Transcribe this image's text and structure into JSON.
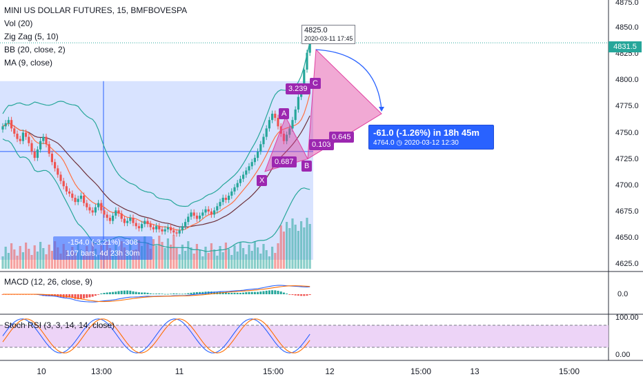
{
  "legend": {
    "symbol": "MINI US DOLLAR FUTURES, 15, BMFBOVESPA",
    "vol": "Vol (20)",
    "zigzag": "Zig Zag (5, 10)",
    "bb": "BB (20, close, 2)",
    "ma": "MA (9, close)"
  },
  "macd_label": "MACD (12, 26, close, 9)",
  "stoch_label": "Stoch RSI (3, 3, 14, 14, close)",
  "price_axis": {
    "ticks": [
      "4875.0",
      "4850.0",
      "4825.0",
      "4800.0",
      "4775.0",
      "4750.0",
      "4725.0",
      "4700.0",
      "4675.0",
      "4650.0",
      "4625.0"
    ],
    "last_price": "4831.5"
  },
  "macd_axis": [
    "0.0"
  ],
  "stoch_axis": [
    "100.00",
    "0.00"
  ],
  "time_axis": [
    "10",
    "13:00",
    "11",
    "15:00",
    "12",
    "15:00",
    "13",
    "15:00"
  ],
  "measure": {
    "line1": "-154.0 (-3.21%) -308",
    "line2": "107 bars, 4d 23h 30m"
  },
  "projection": {
    "line1": "-61.0 (-1.26%) in 18h 45m",
    "line2": "4764.0 ◷ 2020-03-12 12:30"
  },
  "high_flag": {
    "price": "4825.0",
    "time": "2020-03-11 17:45"
  },
  "pattern": {
    "labels": [
      "X",
      "A",
      "B",
      "C"
    ],
    "ratios": [
      "0.687",
      "0.103",
      "3.239",
      "0.645"
    ]
  },
  "colors": {
    "up": "#26a69a",
    "down": "#ef5350",
    "pattern": "#e040a0",
    "accent": "#2962ff",
    "stoch_band": "#e8c9f5"
  },
  "chart_data": {
    "type": "candlestick",
    "title": "MINI US DOLLAR FUTURES, 15, BMFBOVESPA",
    "ylim": [
      4620,
      4880
    ],
    "close": [
      4752,
      4755,
      4758,
      4750,
      4745,
      4740,
      4738,
      4746,
      4742,
      4736,
      4728,
      4722,
      4730,
      4738,
      4742,
      4735,
      4726,
      4718,
      4712,
      4706,
      4700,
      4695,
      4690,
      4688,
      4684,
      4680,
      4683,
      4686,
      4679,
      4675,
      4672,
      4670,
      4675,
      4679,
      4672,
      4668,
      4665,
      4662,
      4667,
      4672,
      4669,
      4664,
      4660,
      4662,
      4665,
      4660,
      4657,
      4655,
      4659,
      4662,
      4659,
      4656,
      4654,
      4657,
      4654,
      4652,
      4654,
      4656,
      4653,
      4651,
      4650,
      4653,
      4657,
      4661,
      4666,
      4670,
      4667,
      4664,
      4667,
      4670,
      4673,
      4671,
      4668,
      4672,
      4676,
      4680,
      4684,
      4682,
      4686,
      4690,
      4694,
      4698,
      4702,
      4706,
      4710,
      4714,
      4718,
      4722,
      4728,
      4735,
      4742,
      4750,
      4758,
      4764,
      4760,
      4752,
      4745,
      4738,
      4744,
      4750,
      4758,
      4768,
      4780,
      4790,
      4806,
      4822,
      4831
    ]
  }
}
